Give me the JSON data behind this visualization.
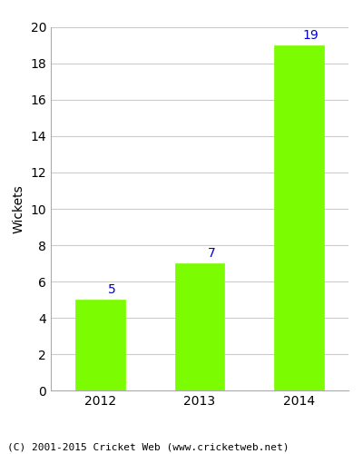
{
  "categories": [
    "2012",
    "2013",
    "2014"
  ],
  "values": [
    5,
    7,
    19
  ],
  "bar_color": "#7CFC00",
  "bar_edgecolor": "#7CFC00",
  "annotation_color": "#0000CC",
  "annotation_fontsize": 10,
  "ylabel": "Wickets",
  "xlabel_fontsize": 10,
  "ylabel_fontsize": 10,
  "tick_fontsize": 10,
  "ylim": [
    0,
    20
  ],
  "yticks": [
    0,
    2,
    4,
    6,
    8,
    10,
    12,
    14,
    16,
    18,
    20
  ],
  "grid_color": "#cccccc",
  "background_color": "#ffffff",
  "axes_background": "#ffffff",
  "footer_text": "(C) 2001-2015 Cricket Web (www.cricketweb.net)",
  "footer_fontsize": 8,
  "bar_width": 0.5
}
